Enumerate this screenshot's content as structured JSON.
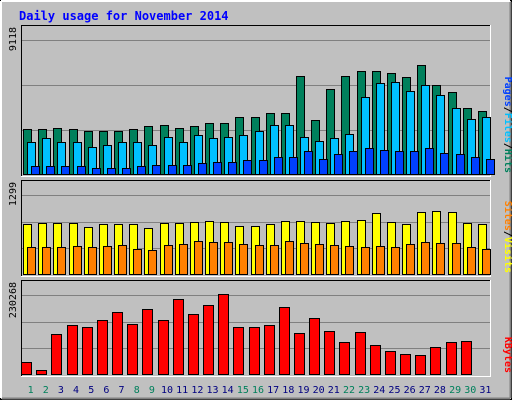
{
  "title": "Daily usage for November 2014",
  "colors": {
    "background": "#c0c0c0",
    "panel": "#c0c0c0",
    "title": "#0000ff",
    "hits": "#00805c",
    "files": "#00c0ff",
    "pages": "#0040ff",
    "visits": "#ffff00",
    "sites": "#ff8000",
    "kbytes": "#ff0000",
    "weekend_label": "#00805c",
    "weekday_label": "#000080"
  },
  "chart_data": [
    {
      "type": "bar",
      "panel": "hits-files-pages",
      "ylabel": "9118",
      "ymax": 9118,
      "legend": [
        {
          "name": "Hits",
          "color": "#00805c"
        },
        {
          "name": "Files",
          "color": "#00c0ff"
        },
        {
          "name": "Pages",
          "color": "#0040ff"
        }
      ],
      "legend_sep": "/",
      "categories": [
        "1",
        "2",
        "3",
        "4",
        "5",
        "6",
        "7",
        "8",
        "9",
        "10",
        "11",
        "12",
        "13",
        "14",
        "15",
        "16",
        "17",
        "18",
        "19",
        "20",
        "21",
        "22",
        "23",
        "24",
        "25",
        "26",
        "27",
        "28",
        "29",
        "30",
        "31"
      ],
      "series": [
        {
          "name": "Hits",
          "values": [
            3100,
            3100,
            3200,
            3100,
            3000,
            3000,
            3000,
            3100,
            3300,
            3400,
            3200,
            3300,
            3500,
            3500,
            3900,
            3900,
            4200,
            4200,
            6700,
            3700,
            5800,
            6700,
            7000,
            7000,
            6900,
            6600,
            7400,
            6100,
            5600,
            4500,
            4300
          ]
        },
        {
          "name": "Files",
          "values": [
            2200,
            2500,
            2200,
            2200,
            1900,
            2000,
            2200,
            2200,
            2000,
            2600,
            2200,
            2700,
            2500,
            2600,
            2700,
            3000,
            3400,
            3400,
            2600,
            2300,
            2500,
            2800,
            5300,
            6200,
            6300,
            5700,
            6100,
            5400,
            4500,
            3800,
            3900
          ]
        },
        {
          "name": "Pages",
          "values": [
            600,
            600,
            600,
            600,
            500,
            500,
            500,
            600,
            700,
            700,
            700,
            800,
            900,
            900,
            1000,
            1000,
            1200,
            1200,
            1600,
            1100,
            1400,
            1600,
            1800,
            1700,
            1600,
            1600,
            1800,
            1500,
            1400,
            1200,
            1100
          ]
        }
      ]
    },
    {
      "type": "bar",
      "panel": "visits-sites",
      "ylabel": "1299",
      "ymax": 1299,
      "legend": [
        {
          "name": "Visits",
          "color": "#ffff00"
        },
        {
          "name": "Sites",
          "color": "#ff8000"
        }
      ],
      "legend_sep": "/",
      "categories": [
        "1",
        "2",
        "3",
        "4",
        "5",
        "6",
        "7",
        "8",
        "9",
        "10",
        "11",
        "12",
        "13",
        "14",
        "15",
        "16",
        "17",
        "18",
        "19",
        "20",
        "21",
        "22",
        "23",
        "24",
        "25",
        "26",
        "27",
        "28",
        "29",
        "30",
        "31"
      ],
      "series": [
        {
          "name": "Visits",
          "values": [
            820,
            840,
            840,
            840,
            780,
            820,
            820,
            820,
            760,
            840,
            840,
            860,
            880,
            860,
            800,
            800,
            830,
            880,
            880,
            860,
            850,
            870,
            900,
            1000,
            860,
            830,
            1030,
            1040,
            1020,
            850,
            830
          ]
        },
        {
          "name": "Sites",
          "values": [
            450,
            450,
            460,
            470,
            450,
            470,
            490,
            430,
            410,
            490,
            500,
            550,
            540,
            540,
            510,
            490,
            490,
            550,
            520,
            510,
            490,
            470,
            460,
            470,
            450,
            500,
            530,
            520,
            520,
            460,
            420
          ]
        }
      ]
    },
    {
      "type": "bar",
      "panel": "kbytes",
      "ylabel": "230268",
      "ymax": 230268,
      "legend": [
        {
          "name": "KBytes",
          "color": "#ff0000"
        }
      ],
      "legend_sep": "",
      "categories": [
        "1",
        "2",
        "3",
        "4",
        "5",
        "6",
        "7",
        "8",
        "9",
        "10",
        "11",
        "12",
        "13",
        "14",
        "15",
        "16",
        "17",
        "18",
        "19",
        "20",
        "21",
        "22",
        "23",
        "24",
        "25",
        "26",
        "27",
        "28",
        "29",
        "30",
        "31"
      ],
      "series": [
        {
          "name": "KBytes",
          "values": [
            36000,
            15000,
            117000,
            145000,
            137000,
            157000,
            180000,
            148000,
            190000,
            157000,
            218000,
            175000,
            202000,
            233000,
            137000,
            137000,
            143000,
            197000,
            122000,
            165000,
            128000,
            95000,
            125000,
            86000,
            68000,
            60000,
            57000,
            80000,
            95000,
            98000,
            0
          ]
        }
      ]
    }
  ],
  "x_labels": {
    "days": [
      "1",
      "2",
      "3",
      "4",
      "5",
      "6",
      "7",
      "8",
      "9",
      "10",
      "11",
      "12",
      "13",
      "14",
      "15",
      "16",
      "17",
      "18",
      "19",
      "20",
      "21",
      "22",
      "23",
      "24",
      "25",
      "26",
      "27",
      "28",
      "29",
      "30",
      "31"
    ],
    "weekend_days": [
      "1",
      "2",
      "8",
      "9",
      "15",
      "16",
      "22",
      "23",
      "29",
      "30"
    ]
  }
}
